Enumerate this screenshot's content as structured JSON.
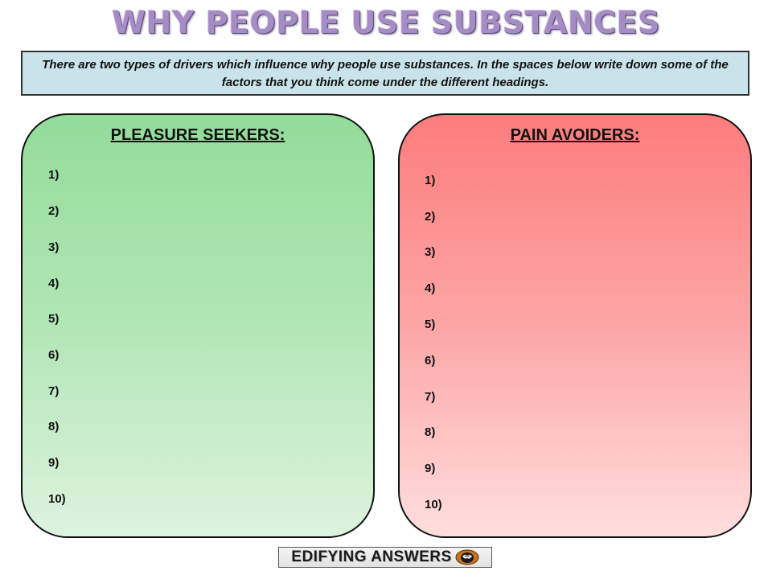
{
  "title": "WHY PEOPLE USE SUBSTANCES",
  "instructions": "There are two types of drivers which influence why people use substances. In the spaces below write down some of the factors that you think come under the different headings.",
  "left_panel": {
    "heading": "PLEASURE SEEKERS:",
    "items": [
      "1)",
      "2)",
      "3)",
      "4)",
      "5)",
      "6)",
      "7)",
      "8)",
      "9)",
      "10)"
    ]
  },
  "right_panel": {
    "heading": "PAIN AVOIDERS:",
    "items": [
      "1)",
      "2)",
      "3)",
      "4)",
      "5)",
      "6)",
      "7)",
      "8)",
      "9)",
      "10)"
    ]
  },
  "logo": {
    "text": "EDIFYING ANSWERS"
  },
  "colors": {
    "left_panel_top": "#93dc9a",
    "right_panel_top": "#fd7c7c",
    "instructions_bg": "#c9e3ea",
    "title": "#a58cc4"
  }
}
